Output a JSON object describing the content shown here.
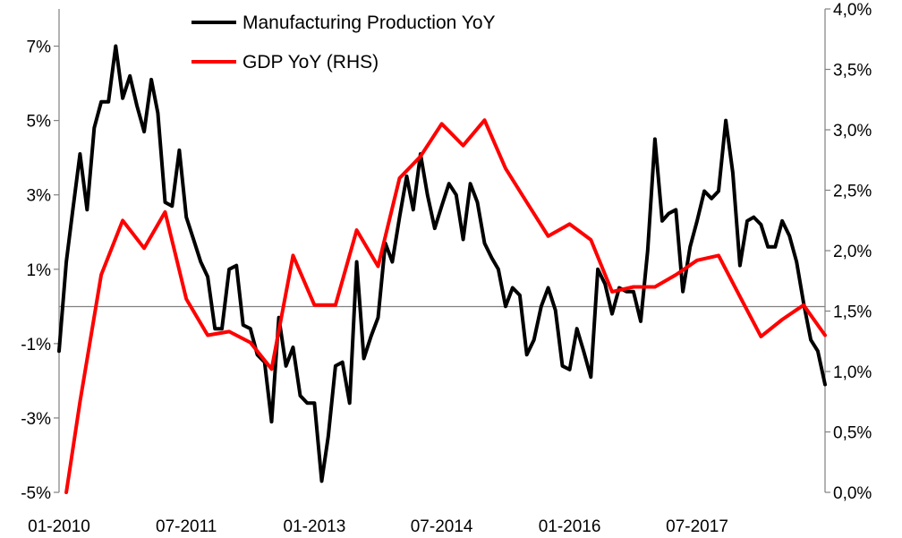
{
  "chart_data": {
    "type": "line",
    "title": "",
    "x_tick_labels": [
      "01-2010",
      "07-2011",
      "01-2013",
      "07-2014",
      "01-2016",
      "07-2017"
    ],
    "y_left": {
      "ylim": [
        -5,
        8
      ],
      "ticks": [
        7,
        5,
        3,
        1,
        -1,
        -3,
        -5
      ],
      "tick_labels": [
        "7%",
        "5%",
        "3%",
        "1%",
        "-1%",
        "-3%",
        "-5%"
      ]
    },
    "y_right": {
      "ylim": [
        0,
        4
      ],
      "ticks": [
        0,
        0.5,
        1,
        1.5,
        2,
        2.5,
        3,
        3.5,
        4
      ],
      "tick_labels": [
        "0,0%",
        "0,5%",
        "1,0%",
        "1,5%",
        "2,0%",
        "2,5%",
        "3,0%",
        "3,5%",
        "4,0%"
      ]
    },
    "zero_line": 0,
    "legend_position": "top-center",
    "series": [
      {
        "name": "Manufacturing Production YoY",
        "axis": "left",
        "color": "#000000",
        "x": [
          "2010-01",
          "2010-02",
          "2010-03",
          "2010-04",
          "2010-05",
          "2010-06",
          "2010-07",
          "2010-08",
          "2010-09",
          "2010-10",
          "2010-11",
          "2010-12",
          "2011-01",
          "2011-02",
          "2011-03",
          "2011-04",
          "2011-05",
          "2011-06",
          "2011-07",
          "2011-08",
          "2011-09",
          "2011-10",
          "2011-11",
          "2011-12",
          "2012-01",
          "2012-02",
          "2012-03",
          "2012-04",
          "2012-05",
          "2012-06",
          "2012-07",
          "2012-08",
          "2012-09",
          "2012-10",
          "2012-11",
          "2012-12",
          "2013-01",
          "2013-02",
          "2013-03",
          "2013-04",
          "2013-05",
          "2013-06",
          "2013-07",
          "2013-08",
          "2013-09",
          "2013-10",
          "2013-11",
          "2013-12",
          "2014-01",
          "2014-02",
          "2014-03",
          "2014-04",
          "2014-05",
          "2014-06",
          "2014-07",
          "2014-08",
          "2014-09",
          "2014-10",
          "2014-11",
          "2014-12",
          "2015-01",
          "2015-02",
          "2015-03",
          "2015-04",
          "2015-05",
          "2015-06",
          "2015-07",
          "2015-08",
          "2015-09",
          "2015-10",
          "2015-11",
          "2015-12",
          "2016-01",
          "2016-02",
          "2016-03",
          "2016-04",
          "2016-05",
          "2016-06",
          "2016-07",
          "2016-08",
          "2016-09",
          "2016-10",
          "2016-11",
          "2016-12",
          "2017-01",
          "2017-02",
          "2017-03",
          "2017-04",
          "2017-05",
          "2017-06",
          "2017-07",
          "2017-08",
          "2017-09",
          "2017-10",
          "2017-11",
          "2017-12",
          "2018-01",
          "2018-02",
          "2018-03",
          "2018-04",
          "2018-05",
          "2018-06",
          "2018-07",
          "2018-08",
          "2018-09",
          "2018-10",
          "2018-11",
          "2018-12",
          "2019-01"
        ],
        "values": [
          -1.2,
          1.2,
          2.6,
          4.1,
          2.6,
          4.8,
          5.5,
          5.5,
          7.0,
          5.6,
          6.2,
          5.4,
          4.7,
          6.1,
          5.2,
          2.8,
          2.7,
          4.2,
          2.4,
          1.8,
          1.2,
          0.8,
          -0.6,
          -0.6,
          1.0,
          1.1,
          -0.5,
          -0.6,
          -1.3,
          -1.5,
          -3.1,
          -0.3,
          -1.6,
          -1.1,
          -2.4,
          -2.6,
          -2.6,
          -4.7,
          -3.5,
          -1.6,
          -1.5,
          -2.6,
          1.2,
          -1.4,
          -0.8,
          -0.3,
          1.7,
          1.2,
          2.4,
          3.5,
          2.6,
          4.1,
          3.0,
          2.1,
          2.7,
          3.3,
          3.0,
          1.8,
          3.3,
          2.8,
          1.7,
          1.3,
          1.0,
          0.0,
          0.5,
          0.3,
          -1.3,
          -0.9,
          0.0,
          0.5,
          -0.1,
          -1.6,
          -1.7,
          -0.6,
          -1.2,
          -1.9,
          1.0,
          0.6,
          -0.2,
          0.5,
          0.4,
          0.4,
          -0.4,
          1.5,
          4.5,
          2.3,
          2.5,
          2.6,
          0.4,
          1.6,
          2.3,
          3.1,
          2.9,
          3.1,
          5.0,
          3.6,
          1.1,
          2.3,
          2.4,
          2.2,
          1.6,
          1.6,
          2.3,
          1.9,
          1.2,
          0.1,
          -0.9,
          -1.2,
          -2.1
        ]
      },
      {
        "name": "GDP YoY (RHS)",
        "axis": "right",
        "color": "#ff0000",
        "x": [
          "2010-02",
          "2010-04",
          "2010-07",
          "2010-10",
          "2011-01",
          "2011-04",
          "2011-07",
          "2011-10",
          "2012-01",
          "2012-04",
          "2012-07",
          "2012-10",
          "2013-01",
          "2013-04",
          "2013-07",
          "2013-10",
          "2014-01",
          "2014-04",
          "2014-07",
          "2014-10",
          "2015-01",
          "2015-04",
          "2015-07",
          "2015-10",
          "2016-01",
          "2016-04",
          "2016-07",
          "2016-10",
          "2017-01",
          "2017-04",
          "2017-07",
          "2017-10",
          "2018-01",
          "2018-04",
          "2018-07",
          "2018-10",
          "2019-01"
        ],
        "values": [
          0.0,
          0.75,
          1.8,
          2.25,
          2.02,
          2.32,
          1.6,
          1.3,
          1.33,
          1.24,
          1.02,
          1.96,
          1.55,
          1.55,
          2.17,
          1.87,
          2.6,
          2.78,
          3.05,
          2.87,
          3.08,
          2.68,
          2.4,
          2.12,
          2.22,
          2.09,
          1.66,
          1.7,
          1.7,
          1.8,
          1.92,
          1.96,
          1.62,
          1.29,
          1.43,
          1.55,
          1.3
        ]
      }
    ]
  }
}
